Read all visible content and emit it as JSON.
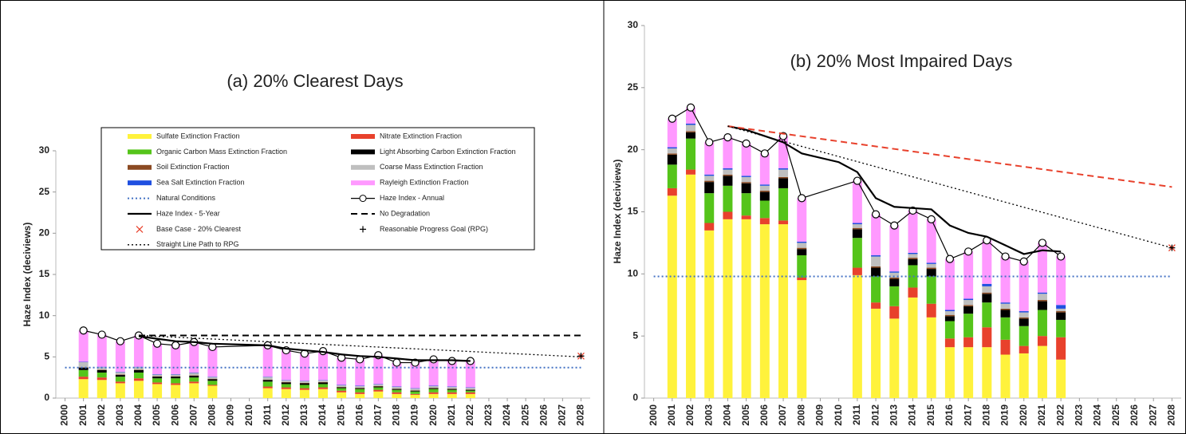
{
  "chart_data": [
    {
      "type": "bar",
      "stacked": true,
      "title": "(a) 20% Clearest Days",
      "y_label": "Haze Index (deciviews)",
      "xlim": [
        1999.5,
        2028.5
      ],
      "xticks": [
        2000,
        2001,
        2002,
        2003,
        2004,
        2005,
        2006,
        2007,
        2008,
        2009,
        2010,
        2011,
        2012,
        2013,
        2014,
        2015,
        2016,
        2017,
        2018,
        2019,
        2020,
        2021,
        2022,
        2023,
        2024,
        2025,
        2026,
        2027,
        2028
      ],
      "ylim": [
        0,
        30
      ],
      "yticks": [
        0,
        5,
        10,
        15,
        20,
        25,
        30
      ],
      "legend": true,
      "x": [
        2001,
        2002,
        2003,
        2004,
        2005,
        2006,
        2007,
        2008,
        2011,
        2012,
        2013,
        2014,
        2015,
        2016,
        2017,
        2018,
        2019,
        2020,
        2021,
        2022
      ],
      "series": [
        {
          "name": "Sulfate Extinction Fraction",
          "color": "#fff23c",
          "values": [
            2.3,
            2.2,
            1.8,
            2.1,
            1.7,
            1.6,
            1.8,
            1.5,
            1.2,
            1.1,
            1.0,
            1.1,
            0.7,
            0.5,
            0.8,
            0.5,
            0.4,
            0.5,
            0.5,
            0.5
          ]
        },
        {
          "name": "Nitrate Extinction Fraction",
          "color": "#e8412c",
          "values": [
            0.3,
            0.3,
            0.2,
            0.3,
            0.2,
            0.2,
            0.2,
            0.1,
            0.2,
            0.2,
            0.2,
            0.2,
            0.2,
            0.2,
            0.2,
            0.2,
            0.1,
            0.2,
            0.2,
            0.2
          ]
        },
        {
          "name": "Organic Carbon Mass Extinction Fraction",
          "color": "#55c41a",
          "values": [
            0.8,
            0.6,
            0.6,
            0.7,
            0.5,
            0.6,
            0.5,
            0.5,
            0.6,
            0.4,
            0.4,
            0.4,
            0.3,
            0.4,
            0.3,
            0.3,
            0.3,
            0.4,
            0.3,
            0.2
          ]
        },
        {
          "name": "Light Absorbing Carbon Extinction Fraction",
          "color": "#000000",
          "values": [
            0.3,
            0.3,
            0.2,
            0.3,
            0.2,
            0.2,
            0.2,
            0.2,
            0.2,
            0.2,
            0.2,
            0.2,
            0.1,
            0.1,
            0.1,
            0.1,
            0.1,
            0.1,
            0.1,
            0.1
          ]
        },
        {
          "name": "Soil Extinction Fraction",
          "color": "#8b4a22",
          "values": [
            0.05,
            0.05,
            0.05,
            0.05,
            0.05,
            0.05,
            0.05,
            0.05,
            0.05,
            0.05,
            0.05,
            0.05,
            0.05,
            0.05,
            0.05,
            0.05,
            0.05,
            0.05,
            0.05,
            0.05
          ]
        },
        {
          "name": "Coarse Mass Extinction Fraction",
          "color": "#bfbfbf",
          "values": [
            0.6,
            0.3,
            0.3,
            0.3,
            0.2,
            0.2,
            0.3,
            0.2,
            0.3,
            0.2,
            0.2,
            0.2,
            0.2,
            0.2,
            0.2,
            0.2,
            0.2,
            0.2,
            0.2,
            0.2
          ]
        },
        {
          "name": "Sea Salt Extinction Fraction",
          "color": "#1f4fe0",
          "values": [
            0.05,
            0.05,
            0.05,
            0.05,
            0.05,
            0.05,
            0.05,
            0.05,
            0.05,
            0.05,
            0.05,
            0.05,
            0.05,
            0.05,
            0.05,
            0.05,
            0.05,
            0.05,
            0.05,
            0.05
          ]
        },
        {
          "name": "Rayleigh Extinction Fraction",
          "color": "#ff99ff",
          "values": [
            3.8,
            3.9,
            3.7,
            3.8,
            3.7,
            3.5,
            3.7,
            3.6,
            3.8,
            3.6,
            3.3,
            3.5,
            3.3,
            3.2,
            3.5,
            2.9,
            3.1,
            3.2,
            3.1,
            3.2
          ]
        }
      ],
      "overlays": [
        {
          "name": "Natural Conditions",
          "kind": "line",
          "style": "dotted",
          "width": 2,
          "color": "#4472c4",
          "x": [
            2000,
            2028
          ],
          "values": [
            3.7,
            3.7
          ]
        },
        {
          "name": "Haze Index - Annual",
          "kind": "line",
          "style": "solid",
          "marker": "circle",
          "width": 1.2,
          "color": "#000000",
          "x": [
            2001,
            2002,
            2003,
            2004,
            2005,
            2006,
            2007,
            2008,
            2011,
            2012,
            2013,
            2014,
            2015,
            2016,
            2017,
            2018,
            2019,
            2020,
            2021,
            2022
          ],
          "values": [
            8.2,
            7.7,
            6.9,
            7.6,
            6.6,
            6.4,
            6.8,
            6.2,
            6.4,
            5.8,
            5.4,
            5.7,
            4.9,
            4.7,
            5.2,
            4.3,
            4.3,
            4.7,
            4.5,
            4.5
          ]
        },
        {
          "name": "Haze Index - 5-Year",
          "kind": "line",
          "style": "solid",
          "width": 2.2,
          "color": "#000000",
          "x": [
            2004,
            2005,
            2006,
            2007,
            2008,
            2011,
            2012,
            2013,
            2014,
            2015,
            2016,
            2017,
            2018,
            2019,
            2020,
            2021,
            2022
          ],
          "values": [
            7.5,
            7.2,
            6.9,
            6.8,
            6.6,
            6.4,
            6.0,
            5.8,
            5.6,
            5.3,
            5.1,
            5.0,
            4.8,
            4.6,
            4.6,
            4.6,
            4.5
          ]
        },
        {
          "name": "No Degradation",
          "kind": "line",
          "style": "dashed",
          "width": 2,
          "color": "#000000",
          "x": [
            2004,
            2028
          ],
          "values": [
            7.6,
            7.6
          ]
        },
        {
          "name": "Base Case - 20% Clearest",
          "kind": "marker",
          "marker": "x",
          "color": "#e8412c",
          "x": [
            2028
          ],
          "values": [
            5.1
          ]
        },
        {
          "name": "Reasonable Progress Goal (RPG)",
          "kind": "marker",
          "marker": "plus",
          "color": "#000000",
          "x": [
            2028
          ],
          "values": [
            5.1
          ]
        },
        {
          "name": "Straight Line Path to RPG",
          "kind": "line",
          "style": "dotted",
          "width": 1.3,
          "color": "#000000",
          "x": [
            2004,
            2028
          ],
          "values": [
            7.6,
            5.0
          ]
        }
      ]
    },
    {
      "type": "bar",
      "stacked": true,
      "title": "(b) 20% Most Impaired Days",
      "y_label": "Haze Index (deciviews)",
      "xlim": [
        1999.5,
        2028.5
      ],
      "xticks": [
        2000,
        2001,
        2002,
        2003,
        2004,
        2005,
        2006,
        2007,
        2008,
        2009,
        2010,
        2011,
        2012,
        2013,
        2014,
        2015,
        2016,
        2017,
        2018,
        2019,
        2020,
        2021,
        2022,
        2023,
        2024,
        2025,
        2026,
        2027,
        2028
      ],
      "ylim": [
        0,
        30
      ],
      "yticks": [
        0,
        5,
        10,
        15,
        20,
        25,
        30
      ],
      "legend": false,
      "x": [
        2001,
        2002,
        2003,
        2004,
        2005,
        2006,
        2007,
        2008,
        2011,
        2012,
        2013,
        2014,
        2015,
        2016,
        2017,
        2018,
        2019,
        2020,
        2021,
        2022
      ],
      "series": [
        {
          "color": "#fff23c",
          "values": [
            16.3,
            18.0,
            13.5,
            14.4,
            14.4,
            14.0,
            14.0,
            9.5,
            9.9,
            7.2,
            6.4,
            8.1,
            6.5,
            4.1,
            4.1,
            4.1,
            3.5,
            3.6,
            4.2,
            3.1
          ]
        },
        {
          "color": "#e8412c",
          "values": [
            0.6,
            0.4,
            0.6,
            0.6,
            0.3,
            0.5,
            0.3,
            0.2,
            0.6,
            0.5,
            1.0,
            0.8,
            1.1,
            0.7,
            0.8,
            1.6,
            1.2,
            0.6,
            0.8,
            1.8
          ]
        },
        {
          "color": "#55c41a",
          "values": [
            1.9,
            2.5,
            2.4,
            2.1,
            1.8,
            1.4,
            2.6,
            1.8,
            2.4,
            2.1,
            1.6,
            1.8,
            2.2,
            1.4,
            1.9,
            2.0,
            1.8,
            1.6,
            2.1,
            1.4
          ]
        },
        {
          "color": "#000000",
          "values": [
            0.8,
            0.5,
            0.9,
            0.8,
            0.8,
            0.7,
            0.8,
            0.5,
            0.7,
            0.7,
            0.6,
            0.5,
            0.6,
            0.4,
            0.6,
            0.7,
            0.6,
            0.6,
            0.7,
            0.6
          ]
        },
        {
          "color": "#8b4a22",
          "values": [
            0.1,
            0.1,
            0.1,
            0.1,
            0.1,
            0.1,
            0.1,
            0.1,
            0.1,
            0.1,
            0.1,
            0.1,
            0.1,
            0.1,
            0.1,
            0.1,
            0.1,
            0.1,
            0.1,
            0.1
          ]
        },
        {
          "color": "#bfbfbf",
          "values": [
            0.4,
            0.5,
            0.4,
            0.4,
            0.4,
            0.4,
            0.6,
            0.4,
            0.3,
            0.8,
            0.4,
            0.3,
            0.3,
            0.3,
            0.4,
            0.5,
            0.4,
            0.4,
            0.5,
            0.2
          ]
        },
        {
          "color": "#1f4fe0",
          "values": [
            0.1,
            0.1,
            0.1,
            0.1,
            0.1,
            0.1,
            0.1,
            0.1,
            0.1,
            0.1,
            0.1,
            0.1,
            0.1,
            0.1,
            0.1,
            0.2,
            0.1,
            0.1,
            0.1,
            0.3
          ]
        },
        {
          "color": "#ff99ff",
          "values": [
            2.3,
            1.3,
            2.6,
            2.5,
            2.6,
            2.5,
            2.6,
            3.5,
            3.4,
            3.3,
            3.7,
            3.4,
            3.5,
            4.1,
            3.8,
            3.5,
            3.7,
            4.0,
            4.0,
            3.9
          ]
        }
      ],
      "overlays": [
        {
          "kind": "line",
          "style": "dotted",
          "width": 2,
          "color": "#4472c4",
          "x": [
            2000,
            2028
          ],
          "values": [
            9.8,
            9.8
          ]
        },
        {
          "kind": "line",
          "style": "solid",
          "marker": "circle",
          "width": 1.2,
          "color": "#000000",
          "x": [
            2001,
            2002,
            2003,
            2004,
            2005,
            2006,
            2007,
            2008,
            2011,
            2012,
            2013,
            2014,
            2015,
            2016,
            2017,
            2018,
            2019,
            2020,
            2021,
            2022
          ],
          "values": [
            22.5,
            23.4,
            20.6,
            21.0,
            20.5,
            19.7,
            21.1,
            16.1,
            17.5,
            14.8,
            13.9,
            15.1,
            14.4,
            11.2,
            11.8,
            12.7,
            11.4,
            11.0,
            12.5,
            11.4
          ]
        },
        {
          "kind": "line",
          "style": "solid",
          "width": 2.2,
          "color": "#000000",
          "x": [
            2004,
            2005,
            2006,
            2007,
            2008,
            2010,
            2011,
            2012,
            2013,
            2014,
            2015,
            2016,
            2017,
            2018,
            2019,
            2020,
            2021,
            2022
          ],
          "values": [
            21.9,
            21.6,
            21.1,
            20.6,
            19.7,
            19.0,
            18.2,
            16.1,
            15.4,
            15.3,
            15.2,
            13.9,
            13.3,
            13.0,
            12.3,
            11.6,
            11.9,
            11.8
          ]
        },
        {
          "kind": "line",
          "style": "dashed",
          "width": 2,
          "color": "#e8412c",
          "x": [
            2004,
            2028
          ],
          "values": [
            21.9,
            17.0
          ]
        },
        {
          "kind": "marker",
          "marker": "x",
          "color": "#e8412c",
          "x": [
            2028
          ],
          "values": [
            12.1
          ]
        },
        {
          "kind": "marker",
          "marker": "plus",
          "color": "#000000",
          "x": [
            2028
          ],
          "values": [
            12.1
          ]
        },
        {
          "kind": "line",
          "style": "dotted",
          "width": 1.3,
          "color": "#000000",
          "x": [
            2004,
            2028
          ],
          "values": [
            21.9,
            12.1
          ]
        }
      ]
    }
  ]
}
